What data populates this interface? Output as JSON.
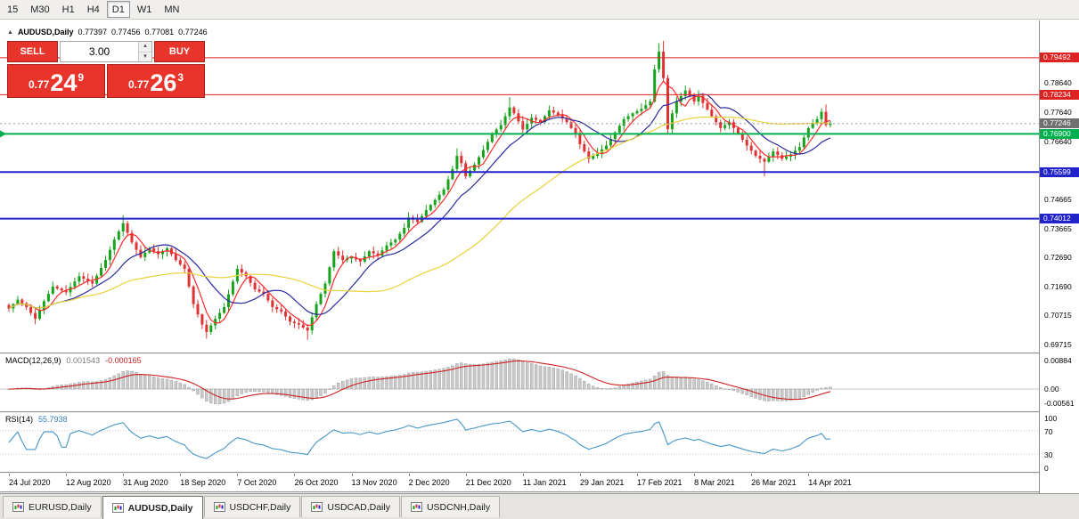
{
  "colors": {
    "up": "#18a31c",
    "down": "#dd3333",
    "ma_fast": "#ff2a2a",
    "ma_mid": "#2a2a9e",
    "ma_slow": "#e8d23a",
    "macd_bar": "#c9c9c9",
    "macd_bar_edge": "#9a9a9a",
    "macd_signal": "#cc2222",
    "rsi_line": "#4596c8",
    "panel_red": "#e8352c"
  },
  "toolbar": {
    "timeframes": [
      {
        "label": "15",
        "active": false
      },
      {
        "label": "M30",
        "active": false
      },
      {
        "label": "H1",
        "active": false
      },
      {
        "label": "H4",
        "active": false
      },
      {
        "label": "D1",
        "active": true
      },
      {
        "label": "W1",
        "active": false
      },
      {
        "label": "MN",
        "active": false
      }
    ]
  },
  "header": {
    "marker": "▲",
    "symbol": "AUDUSD,Daily",
    "open": "0.77397",
    "high": "0.77456",
    "low": "0.77081",
    "close": "0.77246"
  },
  "trade_panel": {
    "sell_label": "SELL",
    "buy_label": "BUY",
    "volume": "3.00",
    "bid": {
      "prefix": "0.77",
      "big": "24",
      "sup": "9"
    },
    "ask": {
      "prefix": "0.77",
      "big": "26",
      "sup": "3"
    }
  },
  "macd_panel": {
    "label": "MACD(12,26,9)",
    "value_main": "0.001543",
    "value_signal": "-0.000165",
    "scale": [
      "0.00884",
      "0.00",
      "-0.00561"
    ]
  },
  "rsi_panel": {
    "label": "RSI(14)",
    "value": "55.7938",
    "scale": [
      "100",
      "70",
      "30",
      "0"
    ],
    "levels": [
      70,
      30
    ]
  },
  "tabs": [
    {
      "label": "EURUSD,Daily",
      "active": false
    },
    {
      "label": "AUDUSD,Daily",
      "active": true
    },
    {
      "label": "USDCHF,Daily",
      "active": false
    },
    {
      "label": "USDCAD,Daily",
      "active": false
    },
    {
      "label": "USDCNH,Daily",
      "active": false
    }
  ],
  "chart_data": {
    "type": "candlestick",
    "symbol": "AUDUSD",
    "timeframe": "Daily",
    "ohlc": {
      "open": 0.77397,
      "high": 0.77456,
      "low": 0.77081,
      "close": 0.77246
    },
    "price_range": [
      0.6945,
      0.8055
    ],
    "bar_count": 188,
    "bars_per_xtick": 13,
    "x_tick_labels": [
      "24 Jul 2020",
      "12 Aug 2020",
      "31 Aug 2020",
      "18 Sep 2020",
      "7 Oct 2020",
      "26 Oct 2020",
      "13 Nov 2020",
      "2 Dec 2020",
      "21 Dec 2020",
      "11 Jan 2021",
      "29 Jan 2021",
      "17 Feb 2021",
      "8 Mar 2021",
      "26 Mar 2021",
      "14 Apr 2021"
    ],
    "y_tick_labels": [
      "0.78640",
      "0.77640",
      "0.76640",
      "0.74665",
      "0.73665",
      "0.72690",
      "0.71690",
      "0.70715",
      "0.69715"
    ],
    "price_markers": [
      {
        "text": "0.79492",
        "value": 0.79492,
        "bg": "#dd2222"
      },
      {
        "text": "0.78234",
        "value": 0.78234,
        "bg": "#dd2222"
      },
      {
        "text": "0.77246",
        "value": 0.77246,
        "bg": "#707070"
      },
      {
        "text": "0.76900",
        "value": 0.769,
        "bg": "#00b050"
      },
      {
        "text": "0.75599",
        "value": 0.75599,
        "bg": "#2323cc"
      },
      {
        "text": "0.74012",
        "value": 0.74012,
        "bg": "#2323cc"
      }
    ],
    "horizontal_lines": [
      {
        "value": 0.79492,
        "color": "#dd2222",
        "width": 1
      },
      {
        "value": 0.78234,
        "color": "#dd2222",
        "width": 1
      },
      {
        "value": 0.77246,
        "color": "#9a9a9a",
        "width": 1,
        "dash": "2,3"
      },
      {
        "value": 0.769,
        "color": "#00b050",
        "width": 2,
        "arrow": true
      },
      {
        "value": 0.75599,
        "color": "#2323cc",
        "width": 2
      },
      {
        "value": 0.74012,
        "color": "#2323cc",
        "width": 2
      }
    ],
    "moving_averages": [
      {
        "period": 5,
        "color": "#ff2a2a"
      },
      {
        "period": 13,
        "color": "#2a2a9e"
      },
      {
        "period": 45,
        "color": "#e8d23a"
      }
    ],
    "close_anchors": [
      [
        0,
        0.7095
      ],
      [
        2,
        0.7125
      ],
      [
        4,
        0.71
      ],
      [
        6,
        0.706
      ],
      [
        8,
        0.712
      ],
      [
        10,
        0.717
      ],
      [
        13,
        0.715
      ],
      [
        16,
        0.7205
      ],
      [
        19,
        0.718
      ],
      [
        22,
        0.726
      ],
      [
        24,
        0.733
      ],
      [
        26,
        0.7385
      ],
      [
        28,
        0.732
      ],
      [
        30,
        0.727
      ],
      [
        32,
        0.73
      ],
      [
        34,
        0.728
      ],
      [
        36,
        0.73
      ],
      [
        38,
        0.726
      ],
      [
        40,
        0.723
      ],
      [
        42,
        0.711
      ],
      [
        44,
        0.704
      ],
      [
        45,
        0.7015
      ],
      [
        47,
        0.706
      ],
      [
        49,
        0.71
      ],
      [
        52,
        0.723
      ],
      [
        54,
        0.7205
      ],
      [
        56,
        0.716
      ],
      [
        58,
        0.7145
      ],
      [
        60,
        0.71
      ],
      [
        62,
        0.7085
      ],
      [
        64,
        0.705
      ],
      [
        66,
        0.704
      ],
      [
        68,
        0.702
      ],
      [
        70,
        0.711
      ],
      [
        72,
        0.718
      ],
      [
        74,
        0.729
      ],
      [
        76,
        0.726
      ],
      [
        78,
        0.727
      ],
      [
        80,
        0.7255
      ],
      [
        82,
        0.729
      ],
      [
        84,
        0.7275
      ],
      [
        86,
        0.731
      ],
      [
        88,
        0.733
      ],
      [
        90,
        0.737
      ],
      [
        91,
        0.7405
      ],
      [
        93,
        0.739
      ],
      [
        95,
        0.743
      ],
      [
        97,
        0.7465
      ],
      [
        99,
        0.75
      ],
      [
        101,
        0.757
      ],
      [
        102,
        0.7615
      ],
      [
        103,
        0.759
      ],
      [
        104,
        0.7545
      ],
      [
        106,
        0.7585
      ],
      [
        108,
        0.7635
      ],
      [
        110,
        0.769
      ],
      [
        112,
        0.772
      ],
      [
        114,
        0.778
      ],
      [
        115,
        0.776
      ],
      [
        117,
        0.7705
      ],
      [
        119,
        0.7745
      ],
      [
        121,
        0.773
      ],
      [
        123,
        0.777
      ],
      [
        125,
        0.7755
      ],
      [
        127,
        0.773
      ],
      [
        129,
        0.769
      ],
      [
        130,
        0.7655
      ],
      [
        132,
        0.7605
      ],
      [
        134,
        0.7625
      ],
      [
        136,
        0.765
      ],
      [
        138,
        0.7695
      ],
      [
        140,
        0.774
      ],
      [
        142,
        0.776
      ],
      [
        144,
        0.7775
      ],
      [
        146,
        0.78
      ],
      [
        147,
        0.791
      ],
      [
        148,
        0.797
      ],
      [
        149,
        0.788
      ],
      [
        150,
        0.7706
      ],
      [
        151,
        0.776
      ],
      [
        152,
        0.78
      ],
      [
        154,
        0.7838
      ],
      [
        156,
        0.78
      ],
      [
        157,
        0.782
      ],
      [
        158,
        0.7795
      ],
      [
        160,
        0.775
      ],
      [
        162,
        0.771
      ],
      [
        164,
        0.773
      ],
      [
        166,
        0.769
      ],
      [
        168,
        0.765
      ],
      [
        170,
        0.7615
      ],
      [
        172,
        0.7595
      ],
      [
        174,
        0.763
      ],
      [
        176,
        0.7605
      ],
      [
        178,
        0.762
      ],
      [
        180,
        0.7645
      ],
      [
        182,
        0.771
      ],
      [
        184,
        0.774
      ],
      [
        185,
        0.7765
      ],
      [
        186,
        0.772
      ],
      [
        187,
        0.77246
      ]
    ],
    "wick_overrides": [
      {
        "i": 26,
        "h": 0.7413
      },
      {
        "i": 45,
        "l": 0.6992
      },
      {
        "i": 68,
        "l": 0.6988
      },
      {
        "i": 102,
        "h": 0.764
      },
      {
        "i": 114,
        "h": 0.7815
      },
      {
        "i": 148,
        "h": 0.7998
      },
      {
        "i": 149,
        "h": 0.8007
      },
      {
        "i": 154,
        "h": 0.7849
      },
      {
        "i": 172,
        "l": 0.7545
      },
      {
        "i": 186,
        "h": 0.779
      }
    ],
    "indicators": {
      "macd": {
        "params": [
          12,
          26,
          9
        ],
        "current_main": 0.001543,
        "current_signal": -0.000165,
        "scale_max": 0.00884,
        "scale_min": -0.00561
      },
      "rsi": {
        "period": 14,
        "current": 55.7938,
        "levels": [
          70,
          30
        ],
        "range": [
          0,
          100
        ]
      }
    }
  }
}
